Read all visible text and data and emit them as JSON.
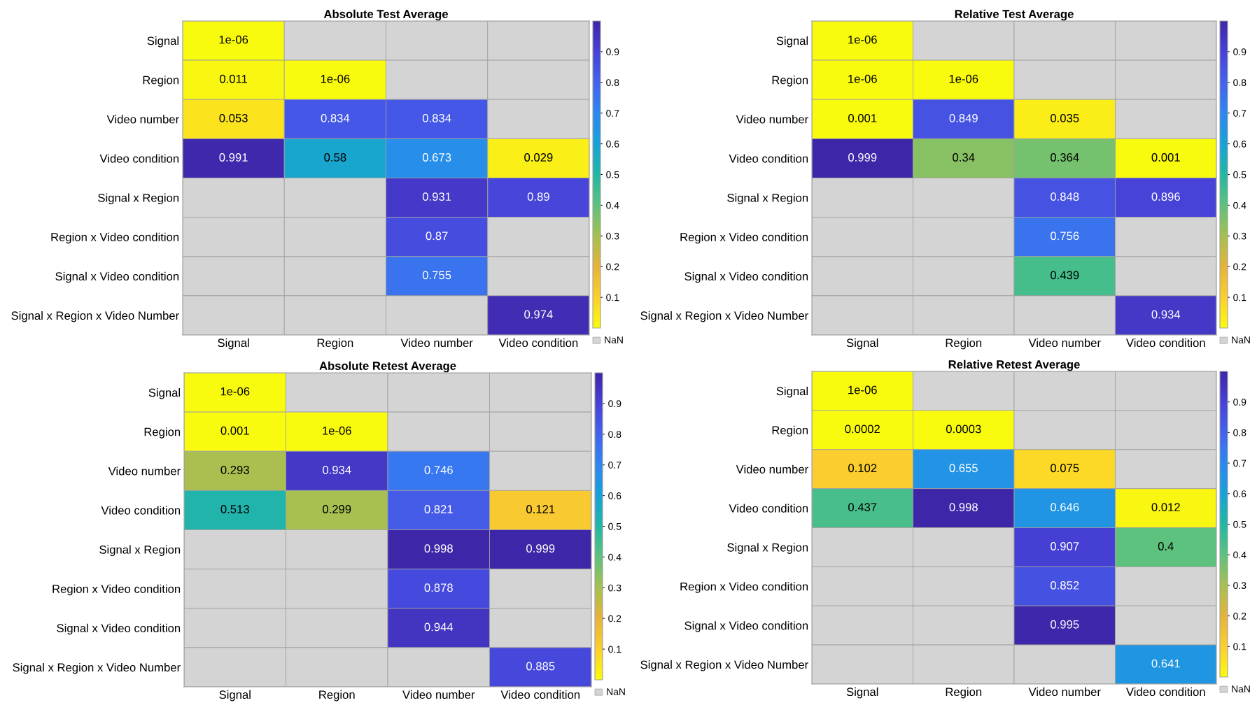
{
  "chart_data": [
    {
      "type": "heatmap",
      "title": "Absolute Test Average",
      "categories": [
        "Signal",
        "Region",
        "Video number",
        "Video condition"
      ],
      "y_categories": [
        "Signal",
        "Region",
        "Video number",
        "Video condition",
        "Signal x Region",
        "Region x Video condition",
        "Signal x Video condition",
        "Signal x Region x Video Number"
      ],
      "cells": [
        [
          1e-06,
          null,
          null,
          null
        ],
        [
          0.011,
          1e-06,
          null,
          null
        ],
        [
          0.053,
          0.834,
          0.834,
          null
        ],
        [
          0.991,
          0.58,
          0.673,
          0.029
        ],
        [
          null,
          null,
          0.931,
          0.89
        ],
        [
          null,
          null,
          0.87,
          null
        ],
        [
          null,
          null,
          0.755,
          null
        ],
        [
          null,
          null,
          null,
          0.974
        ]
      ],
      "cell_labels": [
        [
          "1e-06",
          null,
          null,
          null
        ],
        [
          "0.011",
          "1e-06",
          null,
          null
        ],
        [
          "0.053",
          "0.834",
          "0.834",
          null
        ],
        [
          "0.991",
          "0.58",
          "0.673",
          "0.029"
        ],
        [
          null,
          null,
          "0.931",
          "0.89"
        ],
        [
          null,
          null,
          "0.87",
          null
        ],
        [
          null,
          null,
          "0.755",
          null
        ],
        [
          null,
          null,
          null,
          "0.974"
        ]
      ],
      "clim": [
        0,
        1
      ],
      "cticks": [
        0.1,
        0.2,
        0.3,
        0.4,
        0.5,
        0.6,
        0.7,
        0.8,
        0.9
      ],
      "annotations": [
        "NaN"
      ]
    },
    {
      "type": "heatmap",
      "title": "Relative Test Average",
      "categories": [
        "Signal",
        "Region",
        "Video number",
        "Video condition"
      ],
      "y_categories": [
        "Signal",
        "Region",
        "Video number",
        "Video condition",
        "Signal x Region",
        "Region x Video condition",
        "Signal x Video condition",
        "Signal x Region x Video Number"
      ],
      "cells": [
        [
          1e-06,
          null,
          null,
          null
        ],
        [
          1e-06,
          1e-06,
          null,
          null
        ],
        [
          0.001,
          0.849,
          0.035,
          null
        ],
        [
          0.999,
          0.34,
          0.364,
          0.001
        ],
        [
          null,
          null,
          0.848,
          0.896
        ],
        [
          null,
          null,
          0.756,
          null
        ],
        [
          null,
          null,
          0.439,
          null
        ],
        [
          null,
          null,
          null,
          0.934
        ]
      ],
      "cell_labels": [
        [
          "1e-06",
          null,
          null,
          null
        ],
        [
          "1e-06",
          "1e-06",
          null,
          null
        ],
        [
          "0.001",
          "0.849",
          "0.035",
          null
        ],
        [
          "0.999",
          "0.34",
          "0.364",
          "0.001"
        ],
        [
          null,
          null,
          "0.848",
          "0.896"
        ],
        [
          null,
          null,
          "0.756",
          null
        ],
        [
          null,
          null,
          "0.439",
          null
        ],
        [
          null,
          null,
          null,
          "0.934"
        ]
      ],
      "clim": [
        0,
        1
      ],
      "cticks": [
        0.1,
        0.2,
        0.3,
        0.4,
        0.5,
        0.6,
        0.7,
        0.8,
        0.9
      ],
      "annotations": [
        "NaN"
      ]
    },
    {
      "type": "heatmap",
      "title": "Absolute Retest Average",
      "categories": [
        "Signal",
        "Region",
        "Video number",
        "Video condition"
      ],
      "y_categories": [
        "Signal",
        "Region",
        "Video number",
        "Video condition",
        "Signal x Region",
        "Region x Video condition",
        "Signal x Video condition",
        "Signal x Region x Video Number"
      ],
      "cells": [
        [
          1e-06,
          null,
          null,
          null
        ],
        [
          0.001,
          1e-06,
          null,
          null
        ],
        [
          0.293,
          0.934,
          0.746,
          null
        ],
        [
          0.513,
          0.299,
          0.821,
          0.121
        ],
        [
          null,
          null,
          0.998,
          0.999
        ],
        [
          null,
          null,
          0.878,
          null
        ],
        [
          null,
          null,
          0.944,
          null
        ],
        [
          null,
          null,
          null,
          0.885
        ]
      ],
      "cell_labels": [
        [
          "1e-06",
          null,
          null,
          null
        ],
        [
          "0.001",
          "1e-06",
          null,
          null
        ],
        [
          "0.293",
          "0.934",
          "0.746",
          null
        ],
        [
          "0.513",
          "0.299",
          "0.821",
          "0.121"
        ],
        [
          null,
          null,
          "0.998",
          "0.999"
        ],
        [
          null,
          null,
          "0.878",
          null
        ],
        [
          null,
          null,
          "0.944",
          null
        ],
        [
          null,
          null,
          null,
          "0.885"
        ]
      ],
      "clim": [
        0,
        1
      ],
      "cticks": [
        0.1,
        0.2,
        0.3,
        0.4,
        0.5,
        0.6,
        0.7,
        0.8,
        0.9
      ],
      "annotations": [
        "NaN"
      ]
    },
    {
      "type": "heatmap",
      "title": "Relative Retest Average",
      "categories": [
        "Signal",
        "Region",
        "Video number",
        "Video condition"
      ],
      "y_categories": [
        "Signal",
        "Region",
        "Video number",
        "Video condition",
        "Signal x Region",
        "Region x Video condition",
        "Signal x Video condition",
        "Signal x Region x Video Number"
      ],
      "cells": [
        [
          1e-06,
          null,
          null,
          null
        ],
        [
          0.0002,
          0.0003,
          null,
          null
        ],
        [
          0.102,
          0.655,
          0.075,
          null
        ],
        [
          0.437,
          0.998,
          0.646,
          0.012
        ],
        [
          null,
          null,
          0.907,
          0.4
        ],
        [
          null,
          null,
          0.852,
          null
        ],
        [
          null,
          null,
          0.995,
          null
        ],
        [
          null,
          null,
          null,
          0.641
        ]
      ],
      "cell_labels": [
        [
          "1e-06",
          null,
          null,
          null
        ],
        [
          "0.0002",
          "0.0003",
          null,
          null
        ],
        [
          "0.102",
          "0.655",
          "0.075",
          null
        ],
        [
          "0.437",
          "0.998",
          "0.646",
          "0.012"
        ],
        [
          null,
          null,
          "0.907",
          "0.4"
        ],
        [
          null,
          null,
          "0.852",
          null
        ],
        [
          null,
          null,
          "0.995",
          null
        ],
        [
          null,
          null,
          null,
          "0.641"
        ]
      ],
      "clim": [
        0,
        1
      ],
      "cticks": [
        0.1,
        0.2,
        0.3,
        0.4,
        0.5,
        0.6,
        0.7,
        0.8,
        0.9
      ],
      "annotations": [
        "NaN"
      ]
    }
  ]
}
